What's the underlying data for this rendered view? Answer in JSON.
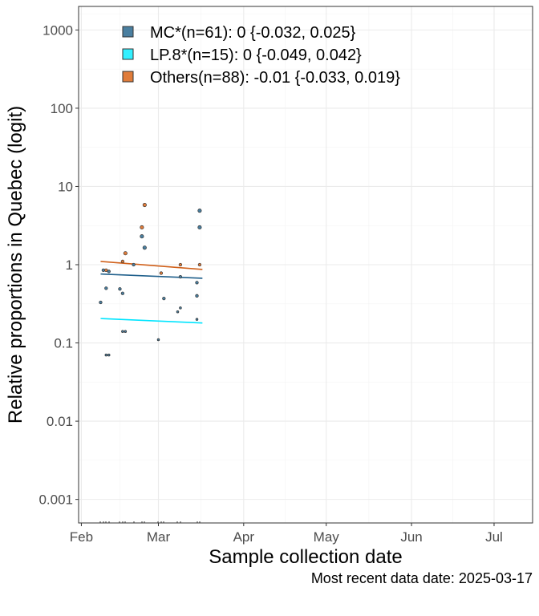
{
  "chart_data": {
    "type": "scatter",
    "xlabel": "Sample collection date",
    "ylabel": "Relative proportions in Quebec (logit)",
    "y_scale": "log",
    "ylim": [
      0.0005,
      2000
    ],
    "xlim": [
      "2025-01-31",
      "2025-07-15"
    ],
    "y_ticks": [
      {
        "value": 0.001,
        "label": "0.001"
      },
      {
        "value": 0.01,
        "label": "0.01"
      },
      {
        "value": 0.1,
        "label": "0.1"
      },
      {
        "value": 1,
        "label": "1"
      },
      {
        "value": 10,
        "label": "10"
      },
      {
        "value": 100,
        "label": "100"
      },
      {
        "value": 1000,
        "label": "1000"
      }
    ],
    "x_ticks": [
      {
        "value": "2025-02-01",
        "label": "Feb"
      },
      {
        "value": "2025-03-01",
        "label": "Mar"
      },
      {
        "value": "2025-04-01",
        "label": "Apr"
      },
      {
        "value": "2025-05-01",
        "label": "May"
      },
      {
        "value": "2025-06-01",
        "label": "Jun"
      },
      {
        "value": "2025-07-01",
        "label": "Jul"
      }
    ],
    "grid": true,
    "legend_position": "top-left",
    "series": [
      {
        "name": "MC*(n=61): 0 {-0.032, 0.025}",
        "color": "#1f5f8b",
        "fill": "#4a7fa0",
        "fit": [
          {
            "x": "2025-02-08",
            "y": 0.76
          },
          {
            "x": "2025-03-17",
            "y": 0.67
          }
        ],
        "points": [
          {
            "x": "2025-02-08",
            "y": 0.33
          },
          {
            "x": "2025-02-09",
            "y": 0.85
          },
          {
            "x": "2025-02-10",
            "y": 0.5
          },
          {
            "x": "2025-02-10",
            "y": 0.07
          },
          {
            "x": "2025-02-11",
            "y": 0.07
          },
          {
            "x": "2025-02-11",
            "y": 0.82
          },
          {
            "x": "2025-02-15",
            "y": 0.49
          },
          {
            "x": "2025-02-16",
            "y": 0.43
          },
          {
            "x": "2025-02-16",
            "y": 0.14
          },
          {
            "x": "2025-02-17",
            "y": 0.14
          },
          {
            "x": "2025-02-20",
            "y": 1.0
          },
          {
            "x": "2025-02-23",
            "y": 2.3
          },
          {
            "x": "2025-02-24",
            "y": 1.65
          },
          {
            "x": "2025-03-01",
            "y": 0.11
          },
          {
            "x": "2025-03-03",
            "y": 0.37
          },
          {
            "x": "2025-03-08",
            "y": 0.25
          },
          {
            "x": "2025-03-09",
            "y": 0.28
          },
          {
            "x": "2025-03-09",
            "y": 0.7
          },
          {
            "x": "2025-03-15",
            "y": 0.4
          },
          {
            "x": "2025-03-15",
            "y": 0.59
          },
          {
            "x": "2025-03-15",
            "y": 0.2
          },
          {
            "x": "2025-03-16",
            "y": 3.0
          },
          {
            "x": "2025-03-16",
            "y": 4.9
          }
        ]
      },
      {
        "name": "LP.8*(n=15): 0 {-0.049, 0.042}",
        "color": "#00e5ff",
        "fill": "#33f0ff",
        "fit": [
          {
            "x": "2025-02-08",
            "y": 0.205
          },
          {
            "x": "2025-03-17",
            "y": 0.18
          }
        ],
        "points": []
      },
      {
        "name": "Others(n=88): -0.01 {-0.033, 0.019}",
        "color": "#d0601a",
        "fill": "#e07c3a",
        "fit": [
          {
            "x": "2025-02-08",
            "y": 1.1
          },
          {
            "x": "2025-03-17",
            "y": 0.87
          }
        ],
        "points": [
          {
            "x": "2025-02-10",
            "y": 0.85
          },
          {
            "x": "2025-02-16",
            "y": 1.1
          },
          {
            "x": "2025-02-17",
            "y": 1.4
          },
          {
            "x": "2025-02-23",
            "y": 3.0
          },
          {
            "x": "2025-02-24",
            "y": 5.8
          },
          {
            "x": "2025-03-02",
            "y": 0.78
          },
          {
            "x": "2025-03-09",
            "y": 1.0
          },
          {
            "x": "2025-03-16",
            "y": 1.0
          }
        ]
      }
    ]
  },
  "caption": "Most recent data date: 2025-03-17"
}
